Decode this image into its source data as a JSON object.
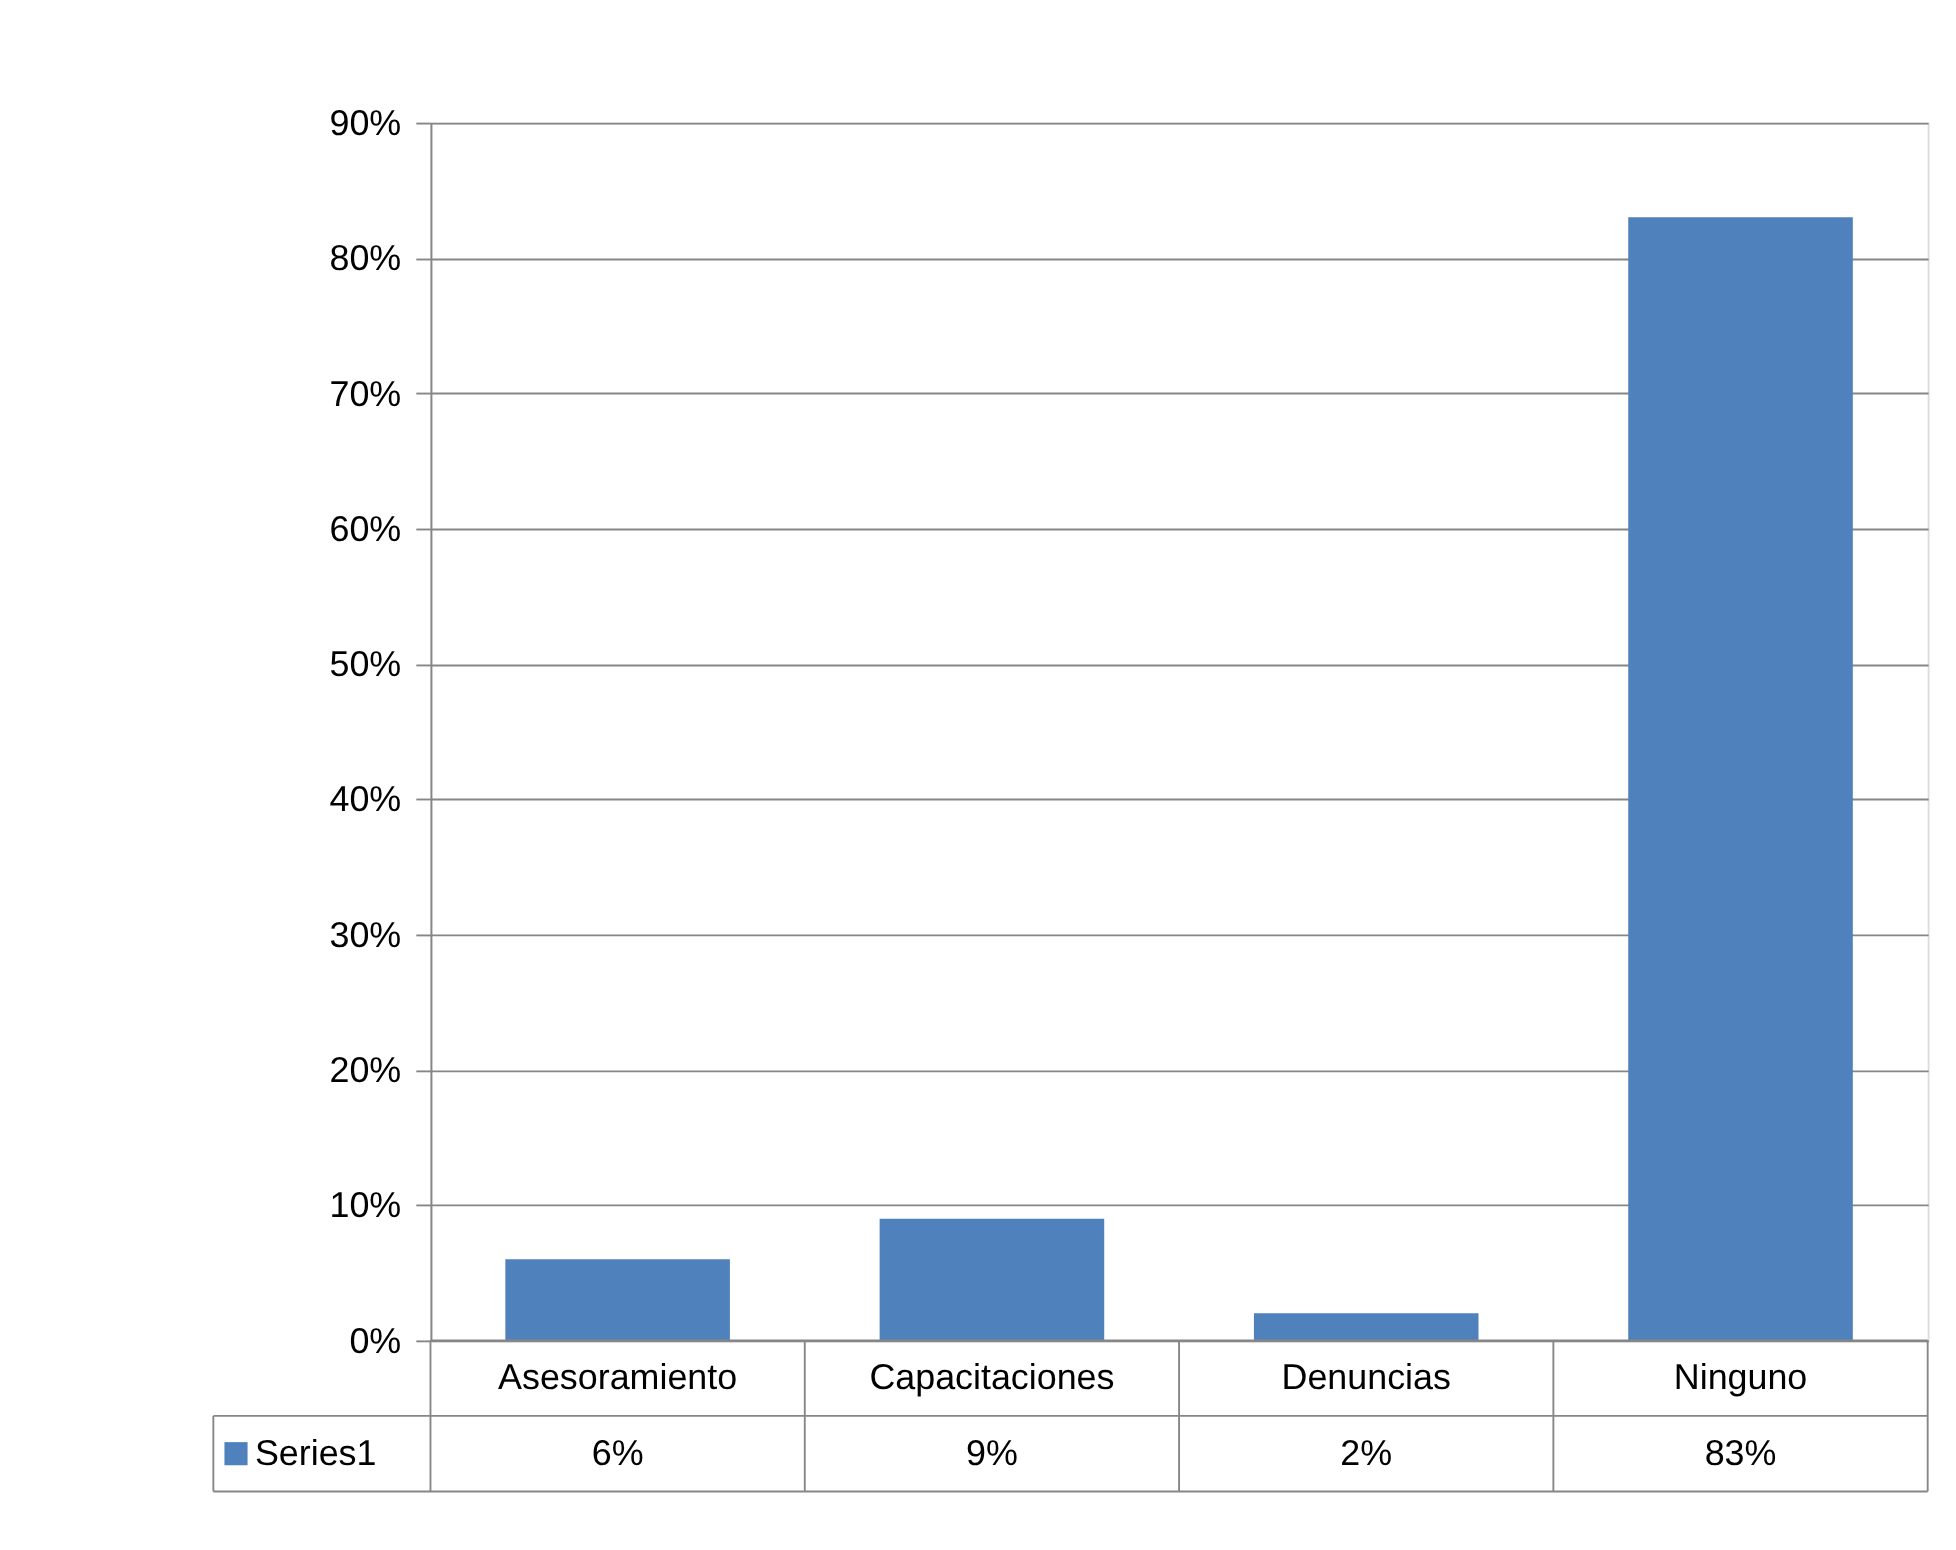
{
  "chart_data": {
    "type": "bar",
    "categories": [
      "Asesoramiento",
      "Capacitaciones",
      "Denuncias",
      "Ninguno"
    ],
    "series": [
      {
        "name": "Series1",
        "color": "#4f81bd",
        "values": [
          6,
          9,
          2,
          83
        ],
        "value_labels": [
          "6%",
          "9%",
          "2%",
          "83%"
        ]
      }
    ],
    "ylim": [
      0,
      90
    ],
    "yticks": [
      {
        "value": 0,
        "label": "0%"
      },
      {
        "value": 10,
        "label": "10%"
      },
      {
        "value": 20,
        "label": "20%"
      },
      {
        "value": 30,
        "label": "30%"
      },
      {
        "value": 40,
        "label": "40%"
      },
      {
        "value": 50,
        "label": "50%"
      },
      {
        "value": 60,
        "label": "60%"
      },
      {
        "value": 70,
        "label": "70%"
      },
      {
        "value": 80,
        "label": "80%"
      },
      {
        "value": 90,
        "label": "90%"
      }
    ],
    "grid": "y",
    "legend": "bottom"
  }
}
